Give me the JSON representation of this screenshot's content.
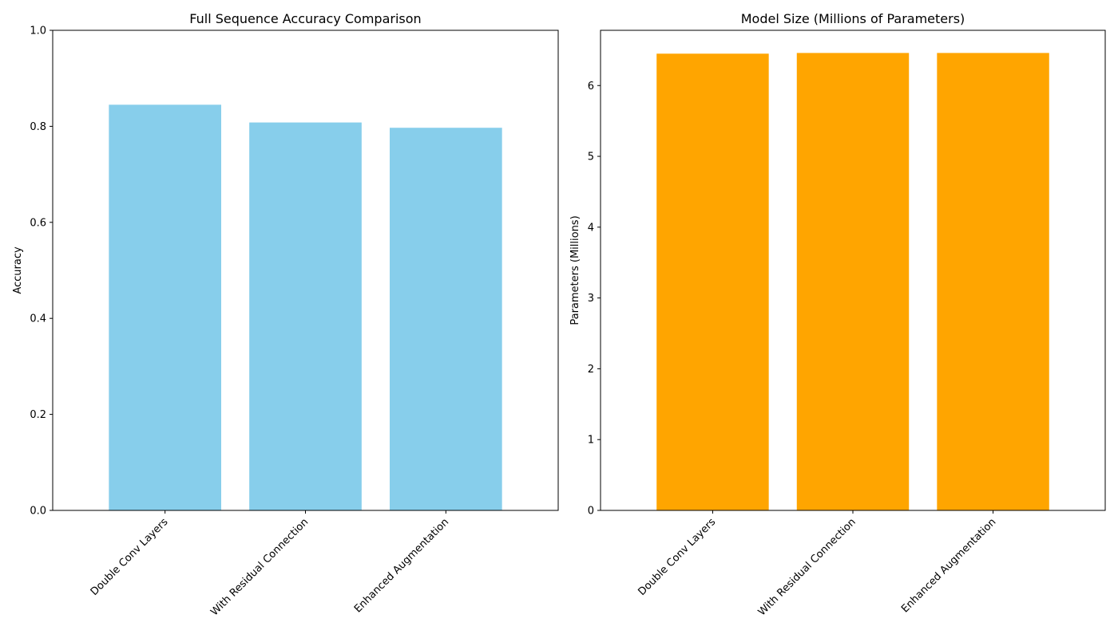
{
  "figure": {
    "background": "#ffffff"
  },
  "chart_data": [
    {
      "type": "bar",
      "title": "Full Sequence Accuracy Comparison",
      "xlabel": "",
      "ylabel": "Accuracy",
      "categories": [
        "Double Conv Layers",
        "With Residual Connection",
        "Enhanced Augmentation"
      ],
      "values": [
        0.845,
        0.808,
        0.797
      ],
      "ylim": [
        0,
        1.0
      ],
      "yticks": [
        0.0,
        0.2,
        0.4,
        0.6,
        0.8,
        1.0
      ],
      "ytick_labels": [
        "0.0",
        "0.2",
        "0.4",
        "0.6",
        "0.8",
        "1.0"
      ],
      "color": "#87CEEB",
      "grid": false,
      "legend": null
    },
    {
      "type": "bar",
      "title": "Model Size (Millions of Parameters)",
      "xlabel": "",
      "ylabel": "Parameters (Millions)",
      "categories": [
        "Double Conv Layers",
        "With Residual Connection",
        "Enhanced Augmentation"
      ],
      "values": [
        6.45,
        6.46,
        6.46
      ],
      "ylim": [
        0,
        6.78
      ],
      "yticks": [
        0,
        1,
        2,
        3,
        4,
        5,
        6
      ],
      "ytick_labels": [
        "0",
        "1",
        "2",
        "3",
        "4",
        "5",
        "6"
      ],
      "color": "#FFA500",
      "grid": false,
      "legend": null
    }
  ]
}
